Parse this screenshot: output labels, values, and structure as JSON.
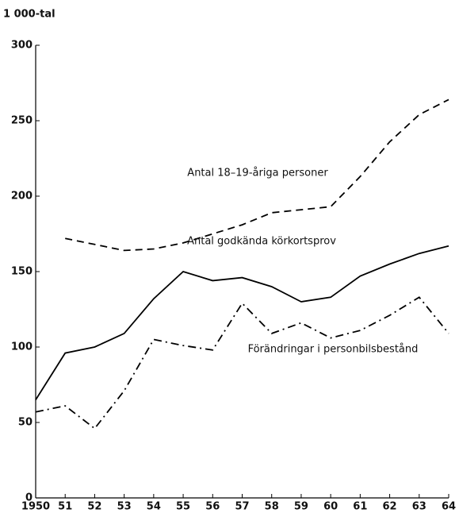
{
  "chart_data": {
    "type": "line",
    "y_axis_label": "1 000-tal",
    "categories": [
      "1950",
      "51",
      "52",
      "53",
      "54",
      "55",
      "56",
      "57",
      "58",
      "59",
      "60",
      "61",
      "62",
      "63",
      "64"
    ],
    "series": [
      {
        "name": "Antal 18–19-åriga personer",
        "color": "#000000",
        "style": "dashed",
        "values": [
          null,
          172,
          168,
          164,
          165,
          169,
          175,
          181,
          189,
          191,
          193,
          213,
          236,
          254,
          264
        ]
      },
      {
        "name": "Antal godkända körkortsprov",
        "color": "#000000",
        "style": "solid",
        "values": [
          65,
          96,
          100,
          109,
          132,
          150,
          144,
          146,
          140,
          130,
          133,
          147,
          155,
          162,
          167
        ]
      },
      {
        "name": "Förändringar i personbilsbestånd",
        "color": "#000000",
        "style": "dashdot",
        "values": [
          57,
          61,
          46,
          71,
          105,
          101,
          98,
          129,
          109,
          116,
          106,
          111,
          121,
          133,
          109
        ]
      }
    ],
    "ylim": [
      0,
      300
    ],
    "yticks": [
      0,
      50,
      100,
      150,
      200,
      250,
      300
    ],
    "grid": false
  }
}
